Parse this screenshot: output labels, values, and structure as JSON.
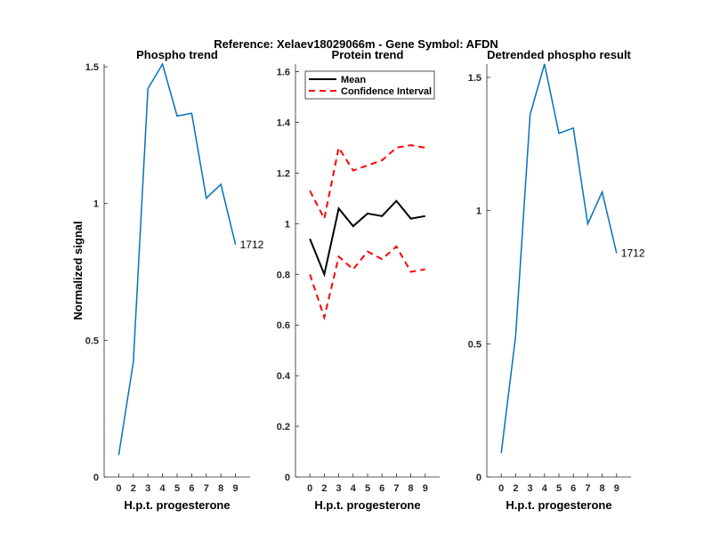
{
  "title": "Reference:  Xelaev18029066m - Gene Symbol:  AFDN",
  "colors": {
    "phospho": "#0072BD",
    "mean": "#000000",
    "ci": "#FF0000",
    "axis": "#262626"
  },
  "chart_data": [
    {
      "type": "line",
      "title": "Phospho trend",
      "xlabel": "H.p.t. progesterone",
      "ylabel": "Normalized signal",
      "categories": [
        "0",
        "2",
        "3",
        "4",
        "5",
        "6",
        "7",
        "8",
        "9"
      ],
      "ylim": [
        0,
        1.51
      ],
      "yticks": [
        "0",
        "0.5",
        "1",
        "1.5"
      ],
      "series": [
        {
          "values": [
            0.08,
            0.42,
            1.42,
            1.51,
            1.32,
            1.33,
            1.02,
            1.07,
            0.85
          ]
        }
      ],
      "annotation": "1712"
    },
    {
      "type": "line",
      "title": "Protein trend",
      "xlabel": "H.p.t. progesterone",
      "categories": [
        "0",
        "2",
        "3",
        "4",
        "5",
        "6",
        "7",
        "8",
        "9"
      ],
      "ylim": [
        0,
        1.63
      ],
      "yticks": [
        "0",
        "0.2",
        "0.4",
        "0.6",
        "0.8",
        "1",
        "1.2",
        "1.4",
        "1.6"
      ],
      "legend": "top-left",
      "series": [
        {
          "name": "Mean",
          "values": [
            0.94,
            0.8,
            1.06,
            0.99,
            1.04,
            1.03,
            1.09,
            1.02,
            1.03
          ]
        },
        {
          "name": "Confidence Interval",
          "values": [
            1.13,
            1.02,
            1.3,
            1.21,
            1.23,
            1.25,
            1.3,
            1.31,
            1.3
          ]
        },
        {
          "values": [
            0.8,
            0.63,
            0.87,
            0.82,
            0.89,
            0.86,
            0.91,
            0.81,
            0.82
          ]
        }
      ]
    },
    {
      "type": "line",
      "title": "Detrended phospho result",
      "xlabel": "H.p.t. progesterone",
      "categories": [
        "0",
        "2",
        "3",
        "4",
        "5",
        "6",
        "7",
        "8",
        "9"
      ],
      "ylim": [
        0,
        1.55
      ],
      "yticks": [
        "0",
        "0.5",
        "1",
        "1.5"
      ],
      "series": [
        {
          "values": [
            0.09,
            0.53,
            1.36,
            1.55,
            1.29,
            1.31,
            0.95,
            1.07,
            0.84
          ]
        }
      ],
      "annotation": "1712"
    }
  ]
}
